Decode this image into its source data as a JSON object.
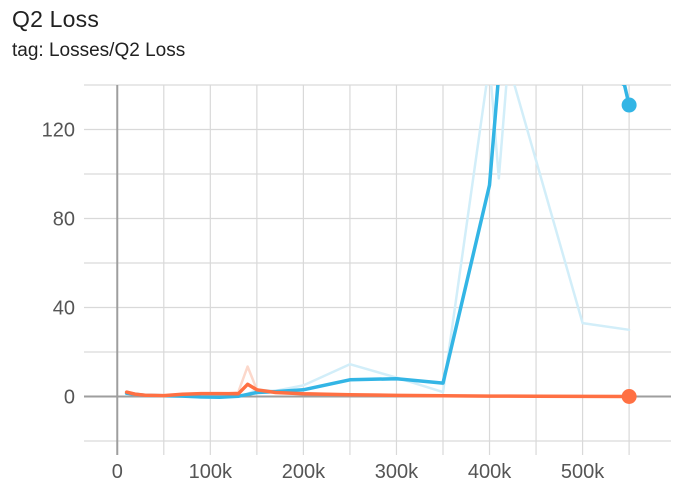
{
  "header": {
    "title": "Q2 Loss",
    "tag": "tag: Losses/Q2 Loss"
  },
  "chart_data": {
    "type": "line",
    "title": "Q2 Loss",
    "subtitle": "tag: Losses/Q2 Loss",
    "xlabel": "",
    "ylabel": "",
    "xlim": [
      -25000,
      595000
    ],
    "ylim": [
      -20,
      140
    ],
    "grid": true,
    "legend": "none",
    "x_ticks": [
      {
        "value": 0,
        "label": "0"
      },
      {
        "value": 100000,
        "label": "100k"
      },
      {
        "value": 200000,
        "label": "200k"
      },
      {
        "value": 300000,
        "label": "300k"
      },
      {
        "value": 400000,
        "label": "400k"
      },
      {
        "value": 500000,
        "label": "500k"
      }
    ],
    "y_ticks": [
      {
        "value": 0,
        "label": "0"
      },
      {
        "value": 40,
        "label": "40"
      },
      {
        "value": 80,
        "label": "80"
      },
      {
        "value": 120,
        "label": "120"
      }
    ],
    "x_minor_step": 50000,
    "y_minor_step": 20,
    "series": [
      {
        "color": "#33b5e5",
        "raw_color": "#d2eef9",
        "raw_x": [
          10000,
          30000,
          50000,
          70000,
          90000,
          110000,
          130000,
          140000,
          150000,
          170000,
          200000,
          250000,
          300000,
          350000,
          400000,
          410000,
          420000,
          500000,
          550000
        ],
        "raw_y": [
          1.5,
          0.5,
          0.2,
          0.1,
          -0.5,
          -0.5,
          0.2,
          1.2,
          3,
          2.5,
          5,
          14.5,
          8.5,
          2,
          150,
          98,
          150,
          33,
          30
        ],
        "smoothed_x": [
          10000,
          30000,
          50000,
          70000,
          90000,
          110000,
          130000,
          150000,
          170000,
          200000,
          250000,
          300000,
          350000,
          400000,
          410000,
          470000,
          545000,
          550000
        ],
        "smoothed_y": [
          1.5,
          0.5,
          0.3,
          0.2,
          -0.2,
          -0.3,
          0.1,
          1.8,
          2.2,
          3,
          7.5,
          8,
          6,
          95,
          145,
          160,
          140,
          131
        ],
        "end_marker": true
      },
      {
        "color": "#ff7043",
        "raw_color": "#fcd8cb",
        "raw_x": [
          10000,
          20000,
          30000,
          50000,
          70000,
          90000,
          110000,
          130000,
          140000,
          150000,
          170000,
          200000,
          250000,
          300000,
          350000,
          400000,
          450000,
          500000,
          550000
        ],
        "raw_y": [
          2,
          1,
          0.5,
          0.3,
          1,
          1.5,
          1,
          2,
          13.5,
          3,
          2,
          1.5,
          0.8,
          0.5,
          0.3,
          0.2,
          0.1,
          0.1,
          0
        ],
        "smoothed_x": [
          10000,
          20000,
          30000,
          50000,
          70000,
          90000,
          110000,
          130000,
          140000,
          150000,
          170000,
          200000,
          250000,
          300000,
          350000,
          400000,
          450000,
          500000,
          550000
        ],
        "smoothed_y": [
          2,
          1,
          0.6,
          0.4,
          1,
          1.3,
          1.3,
          1.2,
          5.5,
          3,
          1.8,
          1.2,
          0.8,
          0.5,
          0.3,
          0.2,
          0.1,
          0.05,
          0
        ],
        "end_marker": true
      }
    ]
  }
}
